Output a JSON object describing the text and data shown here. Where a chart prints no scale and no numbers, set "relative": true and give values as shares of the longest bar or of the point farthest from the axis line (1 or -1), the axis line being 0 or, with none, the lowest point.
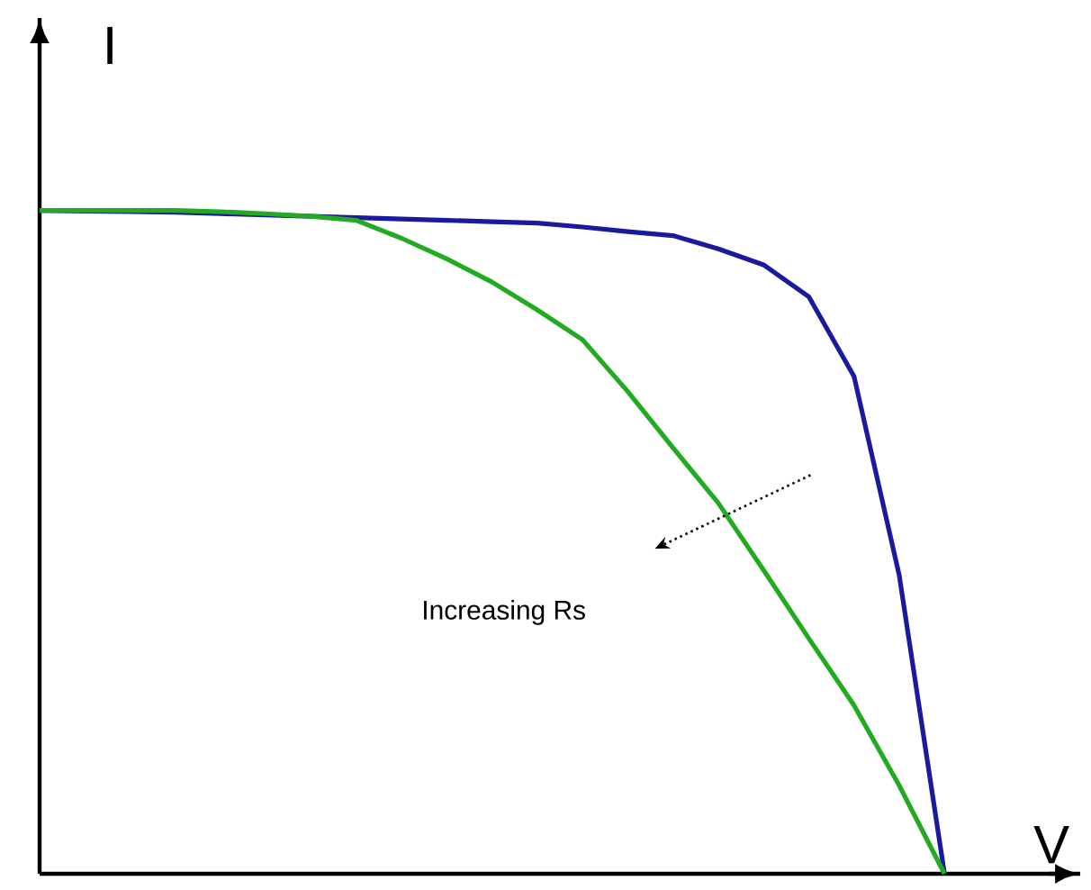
{
  "chart_data": {
    "type": "line",
    "relative": true,
    "xlabel": "V",
    "ylabel": "I",
    "marker": "none",
    "annotations": [
      "Increasing Rs"
    ],
    "categories": [
      null,
      null,
      null,
      null,
      null,
      null,
      null,
      null,
      null,
      null,
      null,
      null,
      null,
      null,
      null,
      null,
      null,
      null,
      null,
      null,
      null
    ],
    "series": [
      {
        "color": "#1a1a9e",
        "values": [
          1.0,
          0.999,
          0.998,
          0.997,
          0.995,
          0.993,
          0.991,
          0.989,
          0.987,
          0.985,
          0.983,
          0.981,
          0.975,
          0.968,
          0.962,
          0.942,
          0.918,
          0.87,
          0.75,
          0.45,
          0
        ]
      },
      {
        "color": "#22aa22",
        "values": [
          1.0,
          1.0,
          1.0,
          1.0,
          0.998,
          0.995,
          0.991,
          0.985,
          0.958,
          0.927,
          0.892,
          0.85,
          0.805,
          0.727,
          0.642,
          0.559,
          0.458,
          0.355,
          0.254,
          0.133,
          0
        ]
      }
    ]
  }
}
